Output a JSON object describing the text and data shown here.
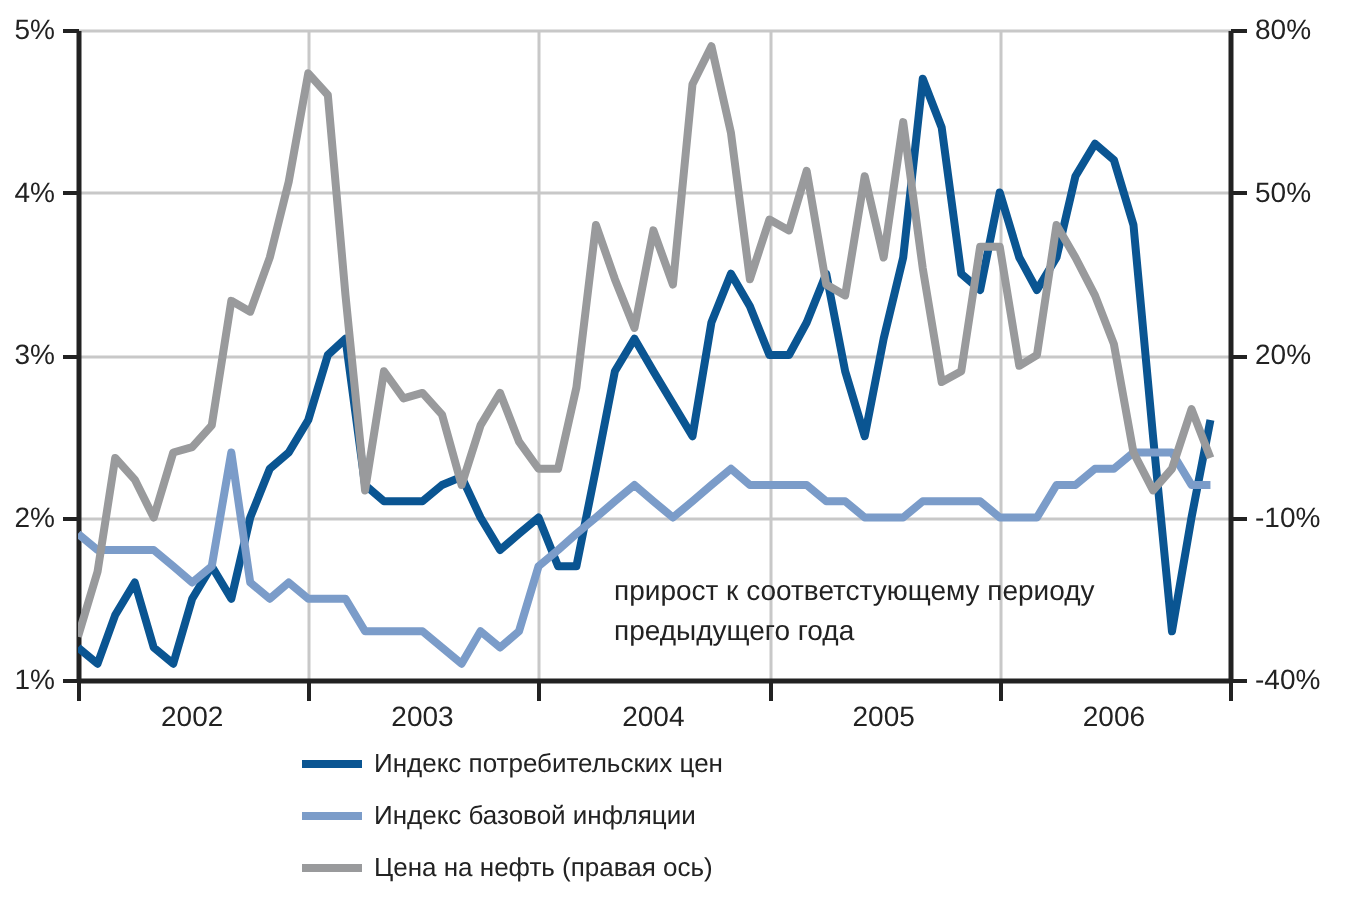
{
  "chart_data": {
    "type": "line",
    "x": [
      "2002-01",
      "2002-02",
      "2002-03",
      "2002-04",
      "2002-05",
      "2002-06",
      "2002-07",
      "2002-08",
      "2002-09",
      "2002-10",
      "2002-11",
      "2002-12",
      "2003-01",
      "2003-02",
      "2003-03",
      "2003-04",
      "2003-05",
      "2003-06",
      "2003-07",
      "2003-08",
      "2003-09",
      "2003-10",
      "2003-11",
      "2003-12",
      "2004-01",
      "2004-02",
      "2004-03",
      "2004-04",
      "2004-05",
      "2004-06",
      "2004-07",
      "2004-08",
      "2004-09",
      "2004-10",
      "2004-11",
      "2004-12",
      "2005-01",
      "2005-02",
      "2005-03",
      "2005-04",
      "2005-05",
      "2005-06",
      "2005-07",
      "2005-08",
      "2005-09",
      "2005-10",
      "2005-11",
      "2005-12",
      "2006-01",
      "2006-02",
      "2006-03",
      "2006-04",
      "2006-05",
      "2006-06",
      "2006-07",
      "2006-08",
      "2006-09",
      "2006-10",
      "2006-11",
      "2006-12"
    ],
    "series": [
      {
        "name": "Индекс потребительских цен",
        "color": "#0a5592",
        "values": [
          1.2,
          1.1,
          1.4,
          1.6,
          1.2,
          1.1,
          1.5,
          1.7,
          1.5,
          2.0,
          2.3,
          2.4,
          2.6,
          3.0,
          3.1,
          2.2,
          2.1,
          2.1,
          2.1,
          2.2,
          2.25,
          2.0,
          1.8,
          1.9,
          2.0,
          1.7,
          1.7,
          2.3,
          2.9,
          3.1,
          2.9,
          2.7,
          2.5,
          3.2,
          3.5,
          3.3,
          3.0,
          3.0,
          3.2,
          3.5,
          2.9,
          2.5,
          3.1,
          3.6,
          4.7,
          4.4,
          3.5,
          3.4,
          4.0,
          3.6,
          3.4,
          3.6,
          4.1,
          4.3,
          4.2,
          3.8,
          2.5,
          1.3,
          2.0,
          2.6
        ]
      },
      {
        "name": "Индекс базовой инфляции",
        "color": "#7b9cc9",
        "values": [
          1.9,
          1.8,
          1.8,
          1.8,
          1.8,
          1.7,
          1.6,
          1.7,
          2.4,
          1.6,
          1.5,
          1.6,
          1.5,
          1.5,
          1.5,
          1.3,
          1.3,
          1.3,
          1.3,
          1.2,
          1.1,
          1.3,
          1.2,
          1.3,
          1.7,
          1.8,
          1.9,
          2.0,
          2.1,
          2.2,
          2.1,
          2.0,
          2.1,
          2.2,
          2.3,
          2.2,
          2.2,
          2.2,
          2.2,
          2.1,
          2.1,
          2.0,
          2.0,
          2.0,
          2.1,
          2.1,
          2.1,
          2.1,
          2.0,
          2.0,
          2.0,
          2.2,
          2.2,
          2.3,
          2.3,
          2.4,
          2.4,
          2.4,
          2.2,
          2.2
        ]
      },
      {
        "name": "Цена на нефть (правая ось)",
        "color": "#999a9c",
        "axis": "y2",
        "values": [
          -32,
          -20,
          1,
          -3,
          -10,
          2,
          3,
          7,
          30,
          28,
          38,
          52,
          72,
          68,
          31,
          -5,
          17,
          12,
          13,
          9,
          -4,
          7,
          13,
          4,
          -1,
          -1,
          14,
          44,
          34,
          25,
          43,
          33,
          70,
          77,
          61,
          34,
          45,
          43,
          54,
          33,
          31,
          53,
          38,
          63,
          36,
          15,
          17,
          40,
          40,
          18,
          20,
          44,
          38,
          31,
          22,
          2,
          -5,
          -1,
          10,
          1
        ]
      }
    ],
    "xlim": [
      "2002-01",
      "2007-01"
    ],
    "xticks": [
      {
        "value": "2002-01",
        "label": null
      },
      {
        "value": "2002-07",
        "label": "2002"
      },
      {
        "value": "2003-01",
        "label": null
      },
      {
        "value": "2003-07",
        "label": "2003"
      },
      {
        "value": "2004-01",
        "label": null
      },
      {
        "value": "2004-07",
        "label": "2004"
      },
      {
        "value": "2005-01",
        "label": null
      },
      {
        "value": "2005-07",
        "label": "2005"
      },
      {
        "value": "2006-01",
        "label": null
      },
      {
        "value": "2006-07",
        "label": "2006"
      },
      {
        "value": "2007-01",
        "label": null
      }
    ],
    "ylim": [
      1,
      5
    ],
    "yticks": [
      {
        "value": 1,
        "label": "1%"
      },
      {
        "value": 2,
        "label": "2%"
      },
      {
        "value": 3,
        "label": "3%"
      },
      {
        "value": 4,
        "label": "4%"
      },
      {
        "value": 5,
        "label": "5%"
      }
    ],
    "y2lim": [
      -40,
      80
    ],
    "y2ticks": [
      {
        "value": -40,
        "label": "-40%"
      },
      {
        "value": -10,
        "label": "-10%"
      },
      {
        "value": 20,
        "label": "20%"
      },
      {
        "value": 50,
        "label": "50%"
      },
      {
        "value": 80,
        "label": "80%"
      }
    ],
    "grid": true,
    "legend": "bottom",
    "line_style": "solid",
    "marker": "none",
    "annotations": [
      "прирост к соответстующему периоду\nпредыдущего года"
    ]
  }
}
